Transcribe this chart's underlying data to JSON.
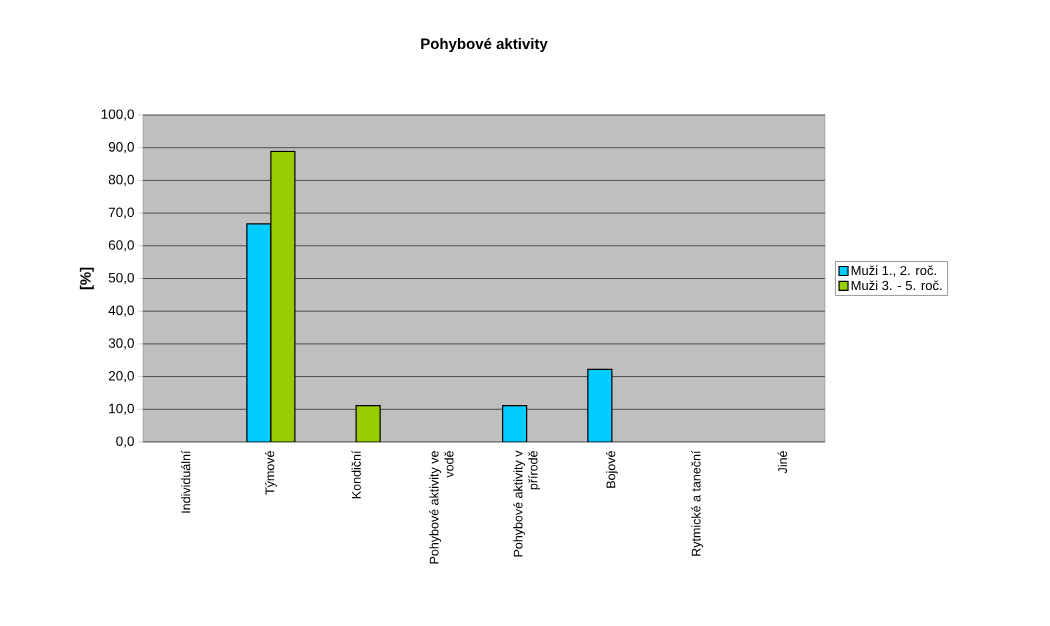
{
  "chart_data": {
    "type": "bar",
    "title": "Pohybové aktivity",
    "ylabel": "[%]",
    "categories": [
      "Individuální",
      "Týmové",
      "Kondiční",
      "Pohybové aktivity ve vodě",
      "Pohybové aktivity v přírodě",
      "Bojové",
      "Rytmické a taneční",
      "Jiné"
    ],
    "series": [
      {
        "name": "Muži 1., 2. roč.",
        "color": "#00ccff",
        "values": [
          null,
          66.7,
          null,
          null,
          11.1,
          22.2,
          null,
          null
        ]
      },
      {
        "name": "Muži 3. - 5. roč.",
        "color": "#99cc00",
        "values": [
          null,
          88.9,
          11.1,
          null,
          null,
          null,
          null,
          null
        ]
      }
    ],
    "ylim": [
      0,
      100
    ],
    "yticks": [
      {
        "value": 0,
        "label": "0,0"
      },
      {
        "value": 10,
        "label": "10,0"
      },
      {
        "value": 20,
        "label": "20,0"
      },
      {
        "value": 30,
        "label": "30,0"
      },
      {
        "value": 40,
        "label": "40,0"
      },
      {
        "value": 50,
        "label": "50,0"
      },
      {
        "value": 60,
        "label": "60,0"
      },
      {
        "value": 70,
        "label": "70,0"
      },
      {
        "value": 80,
        "label": "80,0"
      },
      {
        "value": 90,
        "label": "90,0"
      },
      {
        "value": 100,
        "label": "100,0"
      }
    ],
    "grid": "y",
    "legend": "right"
  }
}
